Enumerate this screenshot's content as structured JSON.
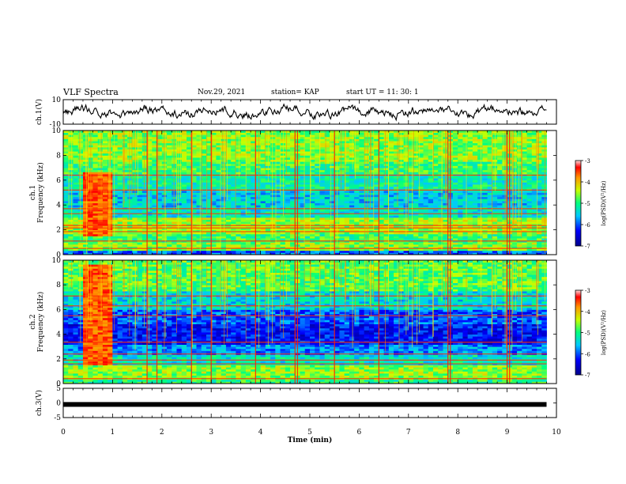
{
  "header": {
    "title": "VLF Spectra",
    "date": "Nov.29, 2021",
    "station": "station= KAP",
    "start_ut": "start  UT =   11: 30: 1"
  },
  "chart_data": [
    {
      "type": "line",
      "panel": "ch1-waveform",
      "ylabel": "ch.1(V)",
      "ylim": [
        -10,
        10
      ],
      "y_ticks": [
        "10",
        "-10"
      ],
      "x_range_min": [
        0,
        9.8
      ]
    },
    {
      "type": "heatmap",
      "panel": "ch1-spectrogram",
      "ylabel": "ch.1\nFrequency (kHz)",
      "ylim": [
        0,
        10
      ],
      "y_ticks": [
        "0",
        "2",
        "4",
        "6",
        "8",
        "10"
      ],
      "x_range_min": [
        0,
        9.8
      ],
      "colorbar": {
        "label": "log(PSD)(V²/Hz)",
        "range": [
          -7,
          -3
        ],
        "ticks": [
          "-3",
          "-4",
          "-5",
          "-6",
          "-7"
        ]
      },
      "emission_band": {
        "x_min": [
          0.4,
          1.0
        ],
        "f_khz": [
          1.5,
          6.7
        ]
      },
      "lines_khz": [
        0.5,
        1.1,
        1.85,
        2.15,
        2.35,
        3.3,
        3.7,
        5.2,
        6.4
      ]
    },
    {
      "type": "heatmap",
      "panel": "ch2-spectrogram",
      "ylabel": "ch.2\nFrequency (kHz)",
      "ylim": [
        0,
        10
      ],
      "y_ticks": [
        "0",
        "2",
        "4",
        "6",
        "8",
        "10"
      ],
      "x_range_min": [
        0,
        9.8
      ],
      "colorbar": {
        "label": "log(PSD)(V²/Hz)",
        "range": [
          -7,
          -3
        ],
        "ticks": [
          "-3",
          "-4",
          "-5",
          "-6",
          "-7"
        ]
      },
      "emission_band": {
        "x_min": [
          0.4,
          1.0
        ],
        "f_khz": [
          1.5,
          9.6
        ]
      },
      "lines_khz": [
        0.4,
        1.6,
        1.9,
        2.4,
        3.35,
        5.5,
        6.3,
        7.1
      ]
    },
    {
      "type": "line",
      "panel": "ch3-waveform",
      "ylabel": "ch.3(V)",
      "ylim": [
        -5,
        5
      ],
      "y_ticks": [
        "5",
        "0",
        "-5"
      ],
      "x_range_min": [
        0,
        9.8
      ],
      "value_v": -0.5
    }
  ],
  "x_axis": {
    "label": "Time  (min)",
    "range": [
      0,
      10
    ],
    "ticks": [
      "0",
      "1",
      "2",
      "3",
      "4",
      "5",
      "6",
      "7",
      "8",
      "9",
      "10"
    ]
  }
}
